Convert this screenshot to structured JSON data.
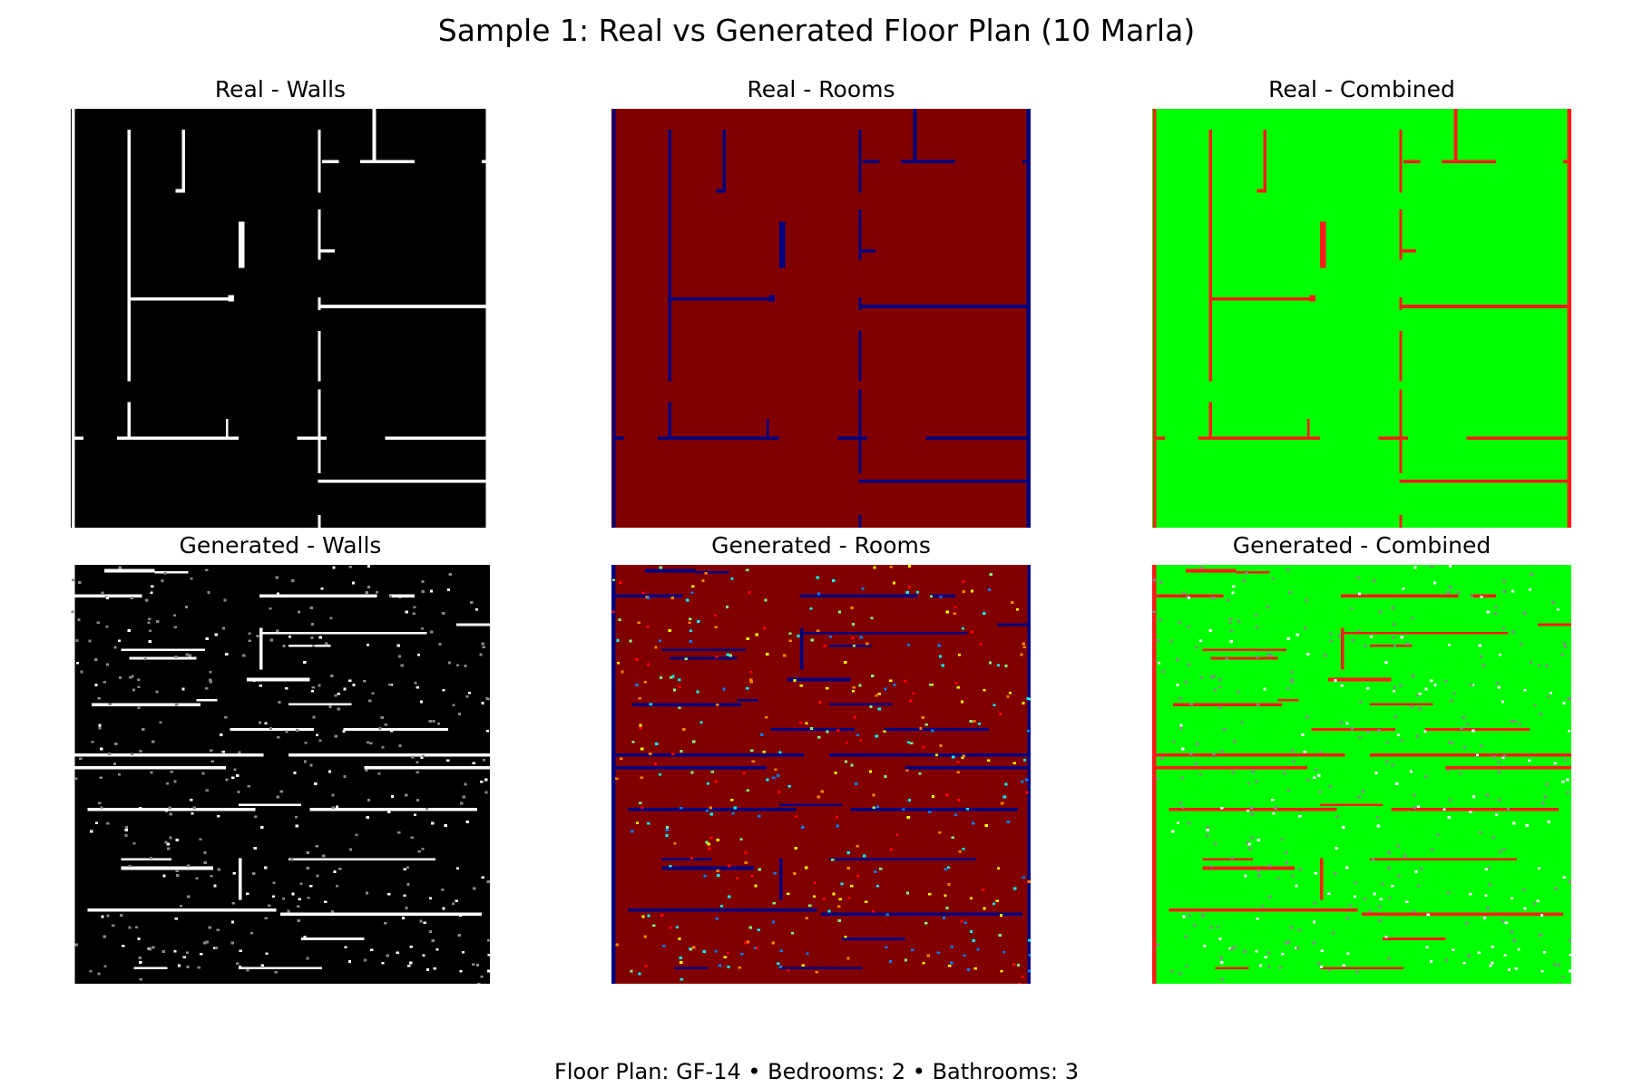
{
  "figure": {
    "title": "Sample 1: Real vs Generated Floor Plan (10 Marla)",
    "footer": "Floor Plan: GF-14 • Bedrooms: 2 • Bathrooms: 3"
  },
  "panels": [
    {
      "title": "Real - Walls",
      "type": "walls",
      "source": "real"
    },
    {
      "title": "Real - Rooms",
      "type": "rooms",
      "source": "real"
    },
    {
      "title": "Real - Combined",
      "type": "combined",
      "source": "real"
    },
    {
      "title": "Generated - Walls",
      "type": "walls",
      "source": "generated"
    },
    {
      "title": "Generated - Rooms",
      "type": "rooms",
      "source": "generated"
    },
    {
      "title": "Generated - Combined",
      "type": "combined",
      "source": "generated"
    }
  ],
  "colors": {
    "walls_background": "#000000",
    "walls_line": "#ffffff",
    "rooms_background": "#800000",
    "rooms_line": "#00007f",
    "combined_background": "#00ff00",
    "combined_line": "#ff1a1a"
  }
}
